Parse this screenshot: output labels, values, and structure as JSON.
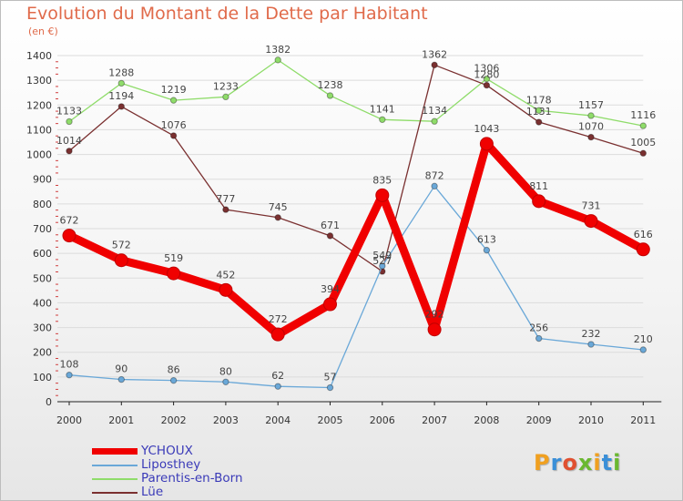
{
  "title": "Evolution du Montant de la Dette par Habitant",
  "unit_label": "(en €)",
  "logo": {
    "letters": [
      "P",
      "r",
      "o",
      "x",
      "i",
      "t",
      "i"
    ],
    "colors": [
      "#f0a020",
      "#3a8fd8",
      "#e05030",
      "#6ab830",
      "#f0a020",
      "#3a8fd8",
      "#6ab830"
    ]
  },
  "chart_data": {
    "type": "line",
    "title": "Evolution du Montant de la Dette par Habitant",
    "xlabel": "",
    "ylabel": "(en €)",
    "ylim": [
      0,
      1400
    ],
    "y_ticks": [
      0,
      100,
      200,
      300,
      400,
      500,
      600,
      700,
      800,
      900,
      1000,
      1100,
      1200,
      1300,
      1400
    ],
    "grid": "horizontal",
    "legend_position": "bottom-left",
    "x": [
      "2000",
      "2001",
      "2002",
      "2003",
      "2004",
      "2005",
      "2006",
      "2007",
      "2008",
      "2009",
      "2010",
      "2011"
    ],
    "series": [
      {
        "name": "Parentis-en-Born",
        "color": "#8fdc6a",
        "values": [
          1133,
          1288,
          1219,
          1233,
          1382,
          1238,
          1141,
          1134,
          1306,
          1178,
          1157,
          1116
        ]
      },
      {
        "name": "Lüe",
        "color": "#7a3030",
        "values": [
          1014,
          1194,
          1076,
          777,
          745,
          671,
          527,
          1362,
          1280,
          1131,
          1070,
          1005
        ]
      },
      {
        "name": "Liposthey",
        "color": "#6aa8d8",
        "values": [
          108,
          90,
          86,
          80,
          62,
          57,
          549,
          872,
          613,
          256,
          232,
          210
        ]
      },
      {
        "name": "YCHOUX",
        "color": "#f00000",
        "values": [
          672,
          572,
          519,
          452,
          272,
          394,
          835,
          292,
          1043,
          811,
          731,
          616
        ]
      }
    ]
  },
  "legend": [
    {
      "name": "YCHOUX",
      "color": "#f00000"
    },
    {
      "name": "Liposthey",
      "color": "#6aa8d8"
    },
    {
      "name": "Parentis-en-Born",
      "color": "#8fdc6a"
    },
    {
      "name": "Lüe",
      "color": "#7a3030"
    }
  ]
}
